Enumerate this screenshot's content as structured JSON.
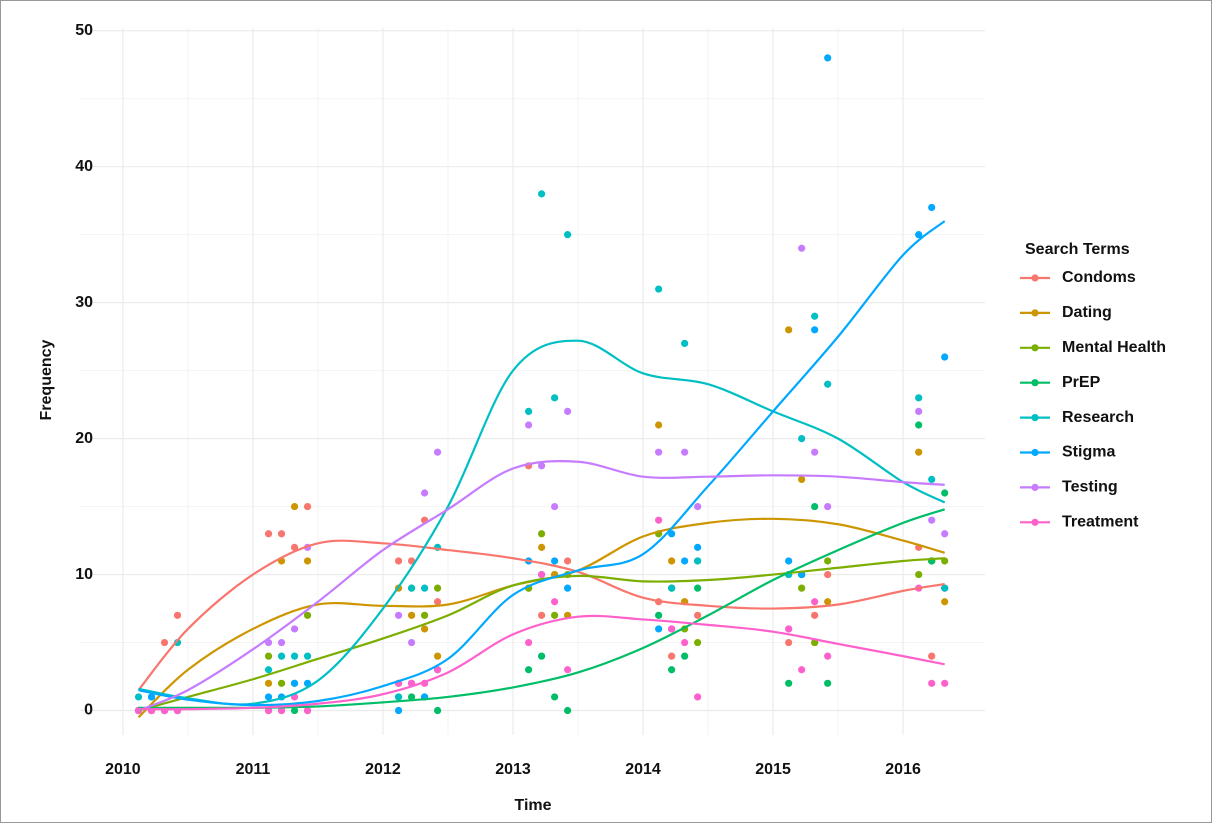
{
  "chart_data": {
    "type": "scatter-smooth",
    "x_label": "Time",
    "y_label": "Frequency",
    "legend_title": "Search Terms",
    "legend": "right",
    "grid": true,
    "xlim": [
      2009.67,
      2016.63
    ],
    "ylim": [
      -1.8,
      50.2
    ],
    "xticks": [
      2010,
      2011,
      2012,
      2013,
      2014,
      2015,
      2016
    ],
    "yticks": [
      0,
      10,
      20,
      30,
      40,
      50
    ],
    "x": [
      2010.12,
      2010.22,
      2010.32,
      2010.42,
      2011.12,
      2011.22,
      2011.32,
      2011.42,
      2012.12,
      2012.22,
      2012.32,
      2012.42,
      2013.12,
      2013.22,
      2013.32,
      2013.42,
      2014.12,
      2014.22,
      2014.32,
      2014.42,
      2015.12,
      2015.22,
      2015.32,
      2015.42,
      2016.12,
      2016.22,
      2016.32
    ],
    "trend_x": [
      2010.12,
      2010.5,
      2011,
      2011.5,
      2012,
      2012.5,
      2013,
      2013.5,
      2014,
      2014.5,
      2015,
      2015.5,
      2016,
      2016.32
    ],
    "series": [
      {
        "name": "Condoms",
        "color": "#F8766D",
        "values": [
          0,
          0,
          5,
          7,
          13,
          13,
          12,
          15,
          11,
          11,
          14,
          8,
          18,
          7,
          10,
          11,
          8,
          4,
          8,
          7,
          5,
          10,
          7,
          10,
          12,
          4,
          9
        ],
        "trend": [
          1.5,
          6,
          10,
          12.3,
          12.3,
          11.8,
          11.2,
          10.2,
          8.3,
          7.7,
          7.5,
          7.8,
          8.8,
          9.3
        ]
      },
      {
        "name": "Dating",
        "color": "#CD9600",
        "values": [
          0,
          0,
          0,
          0,
          2,
          11,
          15,
          11,
          9,
          7,
          6,
          4,
          9,
          12,
          10,
          7,
          21,
          11,
          8,
          11,
          28,
          17,
          5,
          8,
          19,
          11,
          8
        ],
        "trend": [
          -0.5,
          3,
          6,
          7.8,
          7.7,
          7.8,
          9.2,
          10.3,
          12.8,
          13.8,
          14.1,
          13.7,
          12.5,
          11.6
        ]
      },
      {
        "name": "Mental Health",
        "color": "#7CAE00",
        "values": [
          0,
          0,
          0,
          0,
          4,
          2,
          2,
          7,
          2,
          9,
          7,
          9,
          9,
          13,
          7,
          10,
          13,
          9,
          6,
          5,
          10,
          9,
          5,
          11,
          10,
          11,
          11
        ],
        "trend": [
          0,
          1,
          2.3,
          3.8,
          5.3,
          7,
          9.2,
          9.9,
          9.5,
          9.6,
          10,
          10.5,
          11,
          11.2
        ]
      },
      {
        "name": "PrEP",
        "color": "#00BE67",
        "values": [
          0,
          0,
          0,
          0,
          0,
          0,
          0,
          0,
          1,
          1,
          1,
          0,
          3,
          4,
          1,
          0,
          7,
          3,
          4,
          9,
          2,
          10,
          15,
          2,
          21,
          11,
          16
        ],
        "trend": [
          0.2,
          0.2,
          0.2,
          0.3,
          0.6,
          1,
          1.7,
          2.8,
          4.6,
          7,
          9.6,
          11.8,
          13.8,
          14.8
        ]
      },
      {
        "name": "Research",
        "color": "#00BFC4",
        "values": [
          1,
          1,
          0,
          5,
          3,
          4,
          4,
          4,
          1,
          9,
          9,
          12,
          22,
          38,
          23,
          35,
          31,
          9,
          27,
          11,
          10,
          20,
          29,
          24,
          23,
          17,
          9
        ],
        "trend": [
          1.6,
          0.9,
          0.5,
          2.2,
          7.5,
          15,
          25,
          27.2,
          24.8,
          24,
          22,
          20,
          16.8,
          15.3
        ]
      },
      {
        "name": "Stigma",
        "color": "#00A9FF",
        "values": [
          0,
          1,
          0,
          0,
          1,
          1,
          2,
          2,
          0,
          2,
          1,
          3,
          11,
          10,
          11,
          9,
          6,
          13,
          11,
          12,
          11,
          10,
          28,
          48,
          35,
          37,
          26
        ],
        "trend": [
          1.5,
          0.8,
          0.4,
          0.7,
          1.8,
          3.8,
          8.5,
          10.3,
          11.5,
          16.5,
          22,
          27.5,
          33.5,
          36
        ]
      },
      {
        "name": "Testing",
        "color": "#C77CFF",
        "values": [
          0,
          0,
          0,
          0,
          5,
          5,
          6,
          12,
          7,
          5,
          16,
          19,
          21,
          18,
          15,
          22,
          19,
          6,
          19,
          15,
          6,
          34,
          19,
          15,
          22,
          14,
          13
        ],
        "trend": [
          0,
          1.5,
          4.5,
          8,
          11.8,
          14.8,
          17.8,
          18.3,
          17.2,
          17.2,
          17.3,
          17.2,
          16.8,
          16.6
        ]
      },
      {
        "name": "Treatment",
        "color": "#FF61CC",
        "values": [
          0,
          0,
          0,
          0,
          0,
          0,
          1,
          0,
          2,
          2,
          2,
          3,
          5,
          10,
          8,
          3,
          14,
          6,
          5,
          1,
          6,
          3,
          8,
          4,
          9,
          2,
          2
        ],
        "trend": [
          0.1,
          0.1,
          0.2,
          0.5,
          1.2,
          2.8,
          5.6,
          6.9,
          6.7,
          6.3,
          5.8,
          4.9,
          4,
          3.4
        ]
      }
    ]
  }
}
